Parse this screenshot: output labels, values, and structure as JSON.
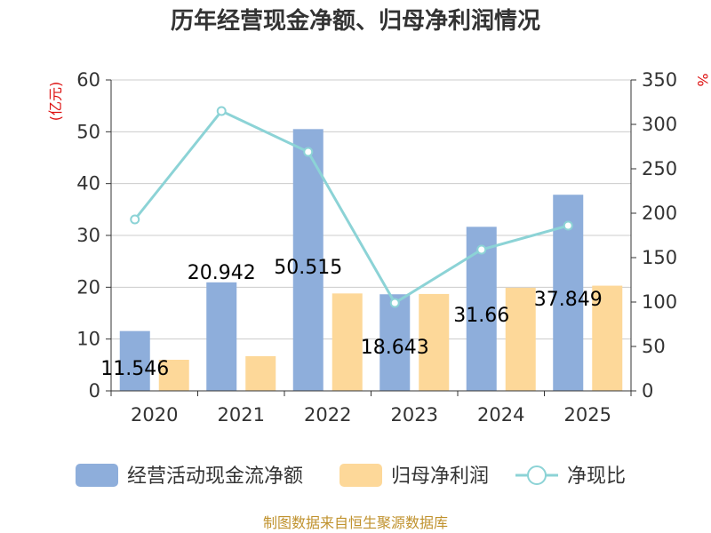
{
  "chart_data": {
    "type": "bar",
    "title": "历年经营现金净额、归母净利润情况",
    "categories": [
      "2020",
      "2021",
      "2022",
      "2023",
      "2024",
      "2025"
    ],
    "left_axis": {
      "unit": "(亿元)",
      "ylim": [
        0,
        60
      ],
      "ticks": [
        0,
        10,
        20,
        30,
        40,
        50,
        60
      ]
    },
    "right_axis": {
      "unit": "%",
      "ylim": [
        0,
        350
      ],
      "ticks": [
        0,
        50,
        100,
        150,
        200,
        250,
        300,
        350
      ]
    },
    "series": [
      {
        "name": "经营活动现金流净额",
        "type": "bar",
        "axis": "left",
        "color": "#8eaedb",
        "values": [
          11.546,
          20.942,
          50.515,
          18.643,
          31.66,
          37.849
        ],
        "labels": [
          "11.546",
          "20.942",
          "50.515",
          "18.643",
          "31.66",
          "37.849"
        ]
      },
      {
        "name": "归母净利润",
        "type": "bar",
        "axis": "left",
        "color": "#fdd899",
        "values": [
          6.0,
          6.7,
          18.8,
          18.7,
          19.9,
          20.3
        ]
      },
      {
        "name": "净现比",
        "type": "line",
        "axis": "right",
        "color": "#8cd3d6",
        "values": [
          193,
          315,
          269,
          99,
          159,
          186
        ]
      }
    ],
    "grid": true,
    "legend": "bottom"
  },
  "footer": "制图数据来自恒生聚源数据库"
}
